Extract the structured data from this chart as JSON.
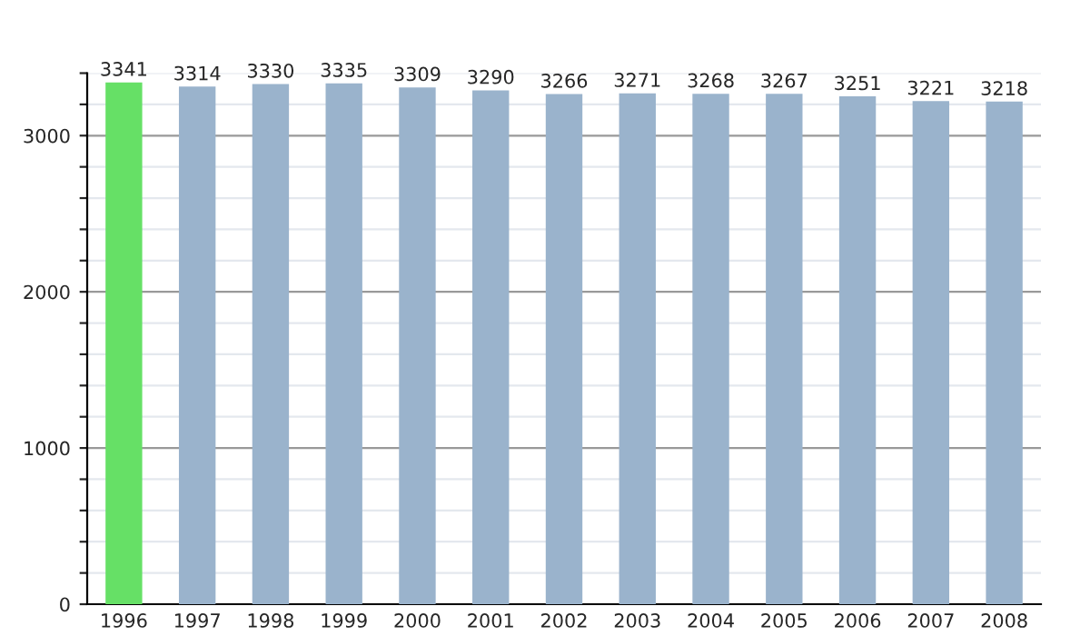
{
  "chart_data": {
    "type": "bar",
    "categories": [
      "1996",
      "1997",
      "1998",
      "1999",
      "2000",
      "2001",
      "2002",
      "2003",
      "2004",
      "2005",
      "2006",
      "2007",
      "2008"
    ],
    "values": [
      3341,
      3314,
      3330,
      3335,
      3309,
      3290,
      3266,
      3271,
      3268,
      3267,
      3251,
      3221,
      3218
    ],
    "colors": [
      "#66e066",
      "#9ab3cc",
      "#9ab3cc",
      "#9ab3cc",
      "#9ab3cc",
      "#9ab3cc",
      "#9ab3cc",
      "#9ab3cc",
      "#9ab3cc",
      "#9ab3cc",
      "#9ab3cc",
      "#9ab3cc",
      "#9ab3cc"
    ],
    "data_labels": true,
    "ylim": [
      0,
      3400
    ],
    "yticks": [
      0,
      {
        "value": 200,
        "label": null
      },
      {
        "value": 400,
        "label": null
      },
      {
        "value": 600,
        "label": null
      },
      {
        "value": 800,
        "label": null
      },
      1000,
      {
        "value": 1200,
        "label": null
      },
      {
        "value": 1400,
        "label": null
      },
      {
        "value": 1600,
        "label": null
      },
      {
        "value": 1800,
        "label": null
      },
      2000,
      {
        "value": 2200,
        "label": null
      },
      {
        "value": 2400,
        "label": null
      },
      {
        "value": 2600,
        "label": null
      },
      {
        "value": 2800,
        "label": null
      },
      3000,
      {
        "value": 3200,
        "label": null
      },
      {
        "value": 3400,
        "label": null
      }
    ],
    "grid": "y"
  }
}
